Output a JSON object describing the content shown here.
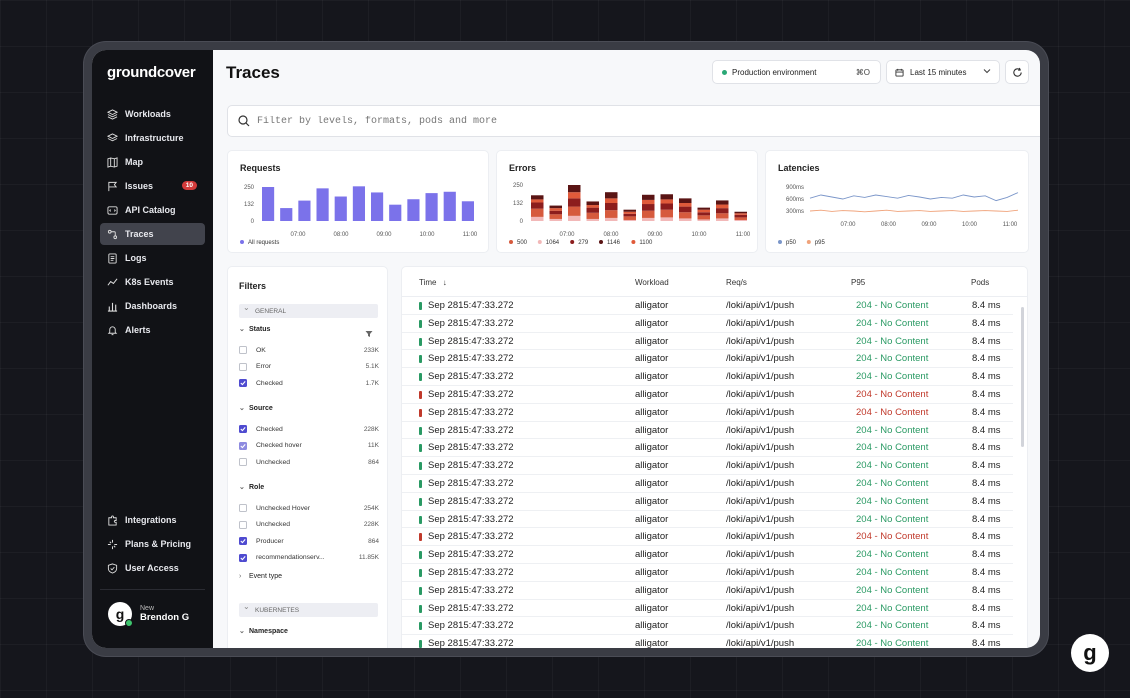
{
  "app": {
    "logo": "groundcover"
  },
  "sidebar": {
    "items": [
      {
        "label": "Workloads",
        "icon": "layers-icon"
      },
      {
        "label": "Infrastructure",
        "icon": "stack-icon"
      },
      {
        "label": "Map",
        "icon": "map-icon"
      },
      {
        "label": "Issues",
        "icon": "flag-icon",
        "badge": "10"
      },
      {
        "label": "API Catalog",
        "icon": "api-icon"
      },
      {
        "label": "Traces",
        "icon": "traces-icon",
        "active": true
      },
      {
        "label": "Logs",
        "icon": "logs-icon"
      },
      {
        "label": "K8s Events",
        "icon": "events-icon"
      },
      {
        "label": "Dashboards",
        "icon": "dashboard-icon"
      },
      {
        "label": "Alerts",
        "icon": "bell-icon"
      }
    ],
    "bottom_items": [
      {
        "label": "Integrations",
        "icon": "puzzle-icon"
      },
      {
        "label": "Plans & Pricing",
        "icon": "pricing-icon"
      },
      {
        "label": "User Access",
        "icon": "shield-icon"
      }
    ],
    "user": {
      "status": "New",
      "name": "Brendon G",
      "initial": "g"
    }
  },
  "header": {
    "title": "Traces",
    "environment": "Production environment",
    "environment_shortcut": "⌘O",
    "time_range": "Last 15 minutes"
  },
  "search": {
    "placeholder": "Filter by levels, formats, pods and more"
  },
  "charts": {
    "requests": {
      "title": "Requests",
      "ticks_y": [
        "250",
        "132",
        "0"
      ],
      "ticks_x": [
        "07:00",
        "08:00",
        "09:00",
        "10:00",
        "11:00"
      ],
      "legend": [
        {
          "label": "All requests",
          "color": "#7b72ea"
        }
      ]
    },
    "errors": {
      "title": "Errors",
      "ticks_y": [
        "250",
        "132",
        "0"
      ],
      "ticks_x": [
        "07:00",
        "08:00",
        "09:00",
        "10:00",
        "11:00"
      ],
      "legend": [
        {
          "label": "500",
          "color": "#d65a3d"
        },
        {
          "label": "1064",
          "color": "#f2b8b8"
        },
        {
          "label": "279",
          "color": "#8c1d1d"
        },
        {
          "label": "1146",
          "color": "#5a1414"
        },
        {
          "label": "1100",
          "color": "#e05a3a"
        }
      ]
    },
    "latencies": {
      "title": "Latencies",
      "ticks_y": [
        "900ms",
        "600ms",
        "300ms"
      ],
      "ticks_x": [
        "07:00",
        "08:00",
        "09:00",
        "10:00",
        "11:00"
      ],
      "legend": [
        {
          "label": "p50",
          "color": "#7b96c9"
        },
        {
          "label": "p95",
          "color": "#f0a37b"
        }
      ]
    }
  },
  "chart_data": [
    {
      "type": "bar",
      "title": "Requests",
      "categories": [
        "1",
        "2",
        "3",
        "4",
        "5",
        "6",
        "7",
        "8",
        "9",
        "10",
        "11",
        "12"
      ],
      "series": [
        {
          "name": "All requests",
          "values": [
            250,
            95,
            150,
            240,
            180,
            255,
            210,
            120,
            160,
            205,
            215,
            145
          ]
        }
      ],
      "ylim": [
        0,
        250
      ]
    },
    {
      "type": "bar",
      "title": "Errors",
      "categories": [
        "1",
        "2",
        "3",
        "4",
        "5",
        "6",
        "7",
        "8",
        "9",
        "10",
        "11",
        "12"
      ],
      "series": [
        {
          "name": "500",
          "values": [
            80,
            45,
            90,
            60,
            75,
            35,
            70,
            75,
            60,
            40,
            50,
            25
          ]
        },
        {
          "name": "1064",
          "values": [
            40,
            20,
            50,
            20,
            30,
            10,
            30,
            35,
            25,
            15,
            25,
            10
          ]
        },
        {
          "name": "279",
          "values": [
            60,
            35,
            80,
            50,
            70,
            25,
            65,
            60,
            55,
            30,
            50,
            25
          ]
        },
        {
          "name": "1146",
          "values": [
            40,
            25,
            70,
            35,
            60,
            20,
            50,
            50,
            45,
            20,
            40,
            15
          ]
        },
        {
          "name": "1100",
          "values": [
            30,
            25,
            60,
            25,
            45,
            20,
            40,
            40,
            35,
            25,
            35,
            15
          ]
        }
      ],
      "ylim": [
        0,
        250
      ]
    },
    {
      "type": "line",
      "title": "Latencies",
      "x": [
        0,
        1,
        2,
        3,
        4,
        5,
        6,
        7,
        8,
        9,
        10,
        11,
        12,
        13,
        14,
        15,
        16,
        17,
        18,
        19
      ],
      "series": [
        {
          "name": "p50",
          "values": [
            620,
            700,
            650,
            600,
            680,
            640,
            700,
            660,
            620,
            690,
            650,
            600,
            640,
            620,
            700,
            650,
            680,
            560,
            640,
            760
          ]
        },
        {
          "name": "p95",
          "values": [
            300,
            320,
            290,
            310,
            300,
            280,
            300,
            320,
            290,
            300,
            310,
            290,
            300,
            310,
            290,
            300,
            310,
            300,
            290,
            320
          ]
        }
      ],
      "ylim": [
        300,
        900
      ]
    }
  ],
  "filters": {
    "title": "Filters",
    "sections": [
      {
        "label": "GENERAL"
      },
      {
        "label": "KUBERNETES"
      }
    ],
    "groups": [
      {
        "label": "Status",
        "items": [
          {
            "label": "OK",
            "count": "233K",
            "state": "unchecked"
          },
          {
            "label": "Error",
            "count": "5.1K",
            "state": "unchecked"
          },
          {
            "label": "Checked",
            "count": "1.7K",
            "state": "checked"
          }
        ]
      },
      {
        "label": "Source",
        "items": [
          {
            "label": "Checked",
            "count": "228K",
            "state": "checked"
          },
          {
            "label": "Checked hover",
            "count": "11K",
            "state": "checked-hover"
          },
          {
            "label": "Unchecked",
            "count": "864",
            "state": "unchecked"
          }
        ]
      },
      {
        "label": "Role",
        "items": [
          {
            "label": "Unchecked Hover",
            "count": "254K",
            "state": "unchecked"
          },
          {
            "label": "Unchecked",
            "count": "228K",
            "state": "unchecked"
          },
          {
            "label": "Producer",
            "count": "864",
            "state": "checked"
          },
          {
            "label": "recommendationserv...",
            "count": "11.85K",
            "state": "checked"
          }
        ]
      }
    ],
    "event_type": "Event type",
    "namespace": "Namespace"
  },
  "table": {
    "columns": [
      "Time",
      "Workload",
      "Req/s",
      "P95",
      "Pods"
    ],
    "rows": [
      {
        "time": "Sep 2815:47:33.272",
        "workload": "alligator",
        "req": "/loki/api/v1/push",
        "p95": "204 - No Content",
        "pods": "8.4 ms",
        "level": "ok"
      },
      {
        "time": "Sep 2815:47:33.272",
        "workload": "alligator",
        "req": "/loki/api/v1/push",
        "p95": "204 - No Content",
        "pods": "8.4 ms",
        "level": "ok"
      },
      {
        "time": "Sep 2815:47:33.272",
        "workload": "alligator",
        "req": "/loki/api/v1/push",
        "p95": "204 - No Content",
        "pods": "8.4 ms",
        "level": "ok"
      },
      {
        "time": "Sep 2815:47:33.272",
        "workload": "alligator",
        "req": "/loki/api/v1/push",
        "p95": "204 - No Content",
        "pods": "8.4 ms",
        "level": "ok"
      },
      {
        "time": "Sep 2815:47:33.272",
        "workload": "alligator",
        "req": "/loki/api/v1/push",
        "p95": "204 - No Content",
        "pods": "8.4 ms",
        "level": "ok"
      },
      {
        "time": "Sep 2815:47:33.272",
        "workload": "alligator",
        "req": "/loki/api/v1/push",
        "p95": "204 - No Content",
        "pods": "8.4 ms",
        "level": "error"
      },
      {
        "time": "Sep 2815:47:33.272",
        "workload": "alligator",
        "req": "/loki/api/v1/push",
        "p95": "204 - No Content",
        "pods": "8.4 ms",
        "level": "error"
      },
      {
        "time": "Sep 2815:47:33.272",
        "workload": "alligator",
        "req": "/loki/api/v1/push",
        "p95": "204 - No Content",
        "pods": "8.4 ms",
        "level": "ok"
      },
      {
        "time": "Sep 2815:47:33.272",
        "workload": "alligator",
        "req": "/loki/api/v1/push",
        "p95": "204 - No Content",
        "pods": "8.4 ms",
        "level": "ok"
      },
      {
        "time": "Sep 2815:47:33.272",
        "workload": "alligator",
        "req": "/loki/api/v1/push",
        "p95": "204 - No Content",
        "pods": "8.4 ms",
        "level": "ok"
      },
      {
        "time": "Sep 2815:47:33.272",
        "workload": "alligator",
        "req": "/loki/api/v1/push",
        "p95": "204 - No Content",
        "pods": "8.4 ms",
        "level": "ok"
      },
      {
        "time": "Sep 2815:47:33.272",
        "workload": "alligator",
        "req": "/loki/api/v1/push",
        "p95": "204 - No Content",
        "pods": "8.4 ms",
        "level": "ok"
      },
      {
        "time": "Sep 2815:47:33.272",
        "workload": "alligator",
        "req": "/loki/api/v1/push",
        "p95": "204 - No Content",
        "pods": "8.4 ms",
        "level": "ok"
      },
      {
        "time": "Sep 2815:47:33.272",
        "workload": "alligator",
        "req": "/loki/api/v1/push",
        "p95": "204 - No Content",
        "pods": "8.4 ms",
        "level": "error"
      },
      {
        "time": "Sep 2815:47:33.272",
        "workload": "alligator",
        "req": "/loki/api/v1/push",
        "p95": "204 - No Content",
        "pods": "8.4 ms",
        "level": "ok"
      },
      {
        "time": "Sep 2815:47:33.272",
        "workload": "alligator",
        "req": "/loki/api/v1/push",
        "p95": "204 - No Content",
        "pods": "8.4 ms",
        "level": "ok"
      },
      {
        "time": "Sep 2815:47:33.272",
        "workload": "alligator",
        "req": "/loki/api/v1/push",
        "p95": "204 - No Content",
        "pods": "8.4 ms",
        "level": "ok"
      },
      {
        "time": "Sep 2815:47:33.272",
        "workload": "alligator",
        "req": "/loki/api/v1/push",
        "p95": "204 - No Content",
        "pods": "8.4 ms",
        "level": "ok"
      },
      {
        "time": "Sep 2815:47:33.272",
        "workload": "alligator",
        "req": "/loki/api/v1/push",
        "p95": "204 - No Content",
        "pods": "8.4 ms",
        "level": "ok"
      },
      {
        "time": "Sep 2815:47:33.272",
        "workload": "alligator",
        "req": "/loki/api/v1/push",
        "p95": "204 - No Content",
        "pods": "8.4 ms",
        "level": "ok"
      }
    ]
  },
  "colors": {
    "accent": "#4f4bd0",
    "ok": "#2a9a64",
    "error": "#c0392b",
    "sidebar": "#111216"
  }
}
